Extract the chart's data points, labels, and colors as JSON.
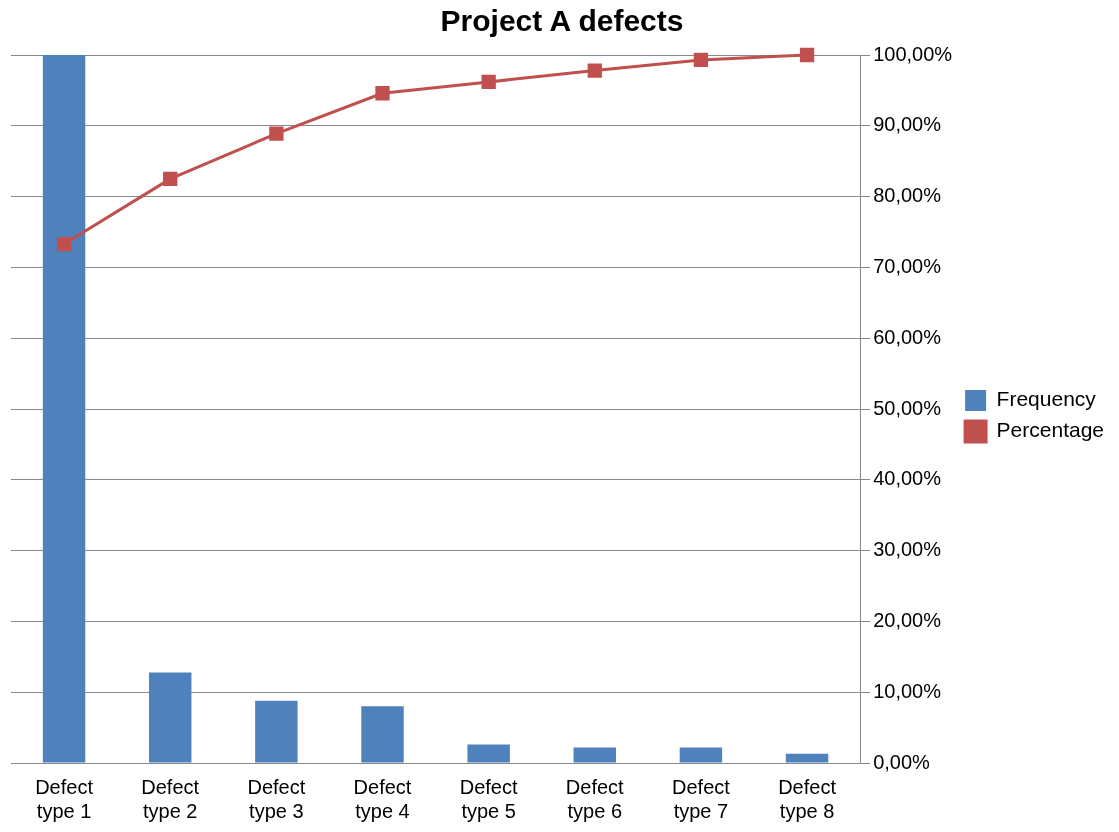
{
  "chart_data": {
    "type": "bar",
    "title": "Project A defects",
    "categories": [
      "Defect type 1",
      "Defect type 2",
      "Defect type 3",
      "Defect type 4",
      "Defect type 5",
      "Defect type 6",
      "Defect type 7",
      "Defect type 8"
    ],
    "series": [
      {
        "name": "Frequency",
        "color": "#4f81bd",
        "values": [
          100,
          12.8,
          8.8,
          8.0,
          2.6,
          2.2,
          2.2,
          1.3
        ]
      },
      {
        "name": "Percentage",
        "type": "line",
        "color": "#c0504d",
        "values": [
          73.3,
          82.5,
          88.9,
          94.6,
          96.2,
          97.8,
          99.3,
          100
        ]
      }
    ],
    "ylim": [
      0,
      100
    ],
    "yticks": [
      {
        "value": 0,
        "label": "0,00%"
      },
      {
        "value": 10,
        "label": "10,00%"
      },
      {
        "value": 20,
        "label": "20,00%"
      },
      {
        "value": 30,
        "label": "30,00%"
      },
      {
        "value": 40,
        "label": "40,00%"
      },
      {
        "value": 50,
        "label": "50,00%"
      },
      {
        "value": 60,
        "label": "60,00%"
      },
      {
        "value": 70,
        "label": "70,00%"
      },
      {
        "value": 80,
        "label": "80,00%"
      },
      {
        "value": 90,
        "label": "90,00%"
      },
      {
        "value": 100,
        "label": "100,00%"
      }
    ],
    "grid": "y",
    "legend": "right",
    "marker": "square",
    "line_style": "solid"
  }
}
